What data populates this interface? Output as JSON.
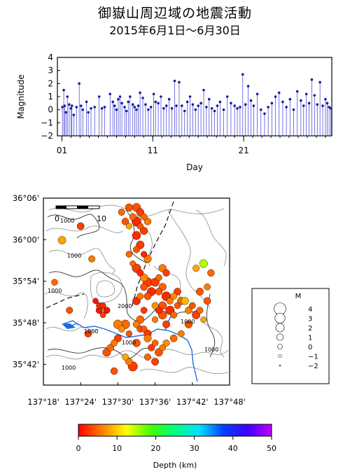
{
  "title": "御嶽山周辺域の地震活動",
  "subtitle": "2015年6月1日〜6月30日",
  "chart_data": [
    {
      "type": "line",
      "name": "magnitude-time",
      "ylabel": "Magnitude",
      "xlabel": "Day",
      "ylim": [
        -2,
        4
      ],
      "yticks": [
        "4",
        "3",
        "2",
        "1",
        "0",
        "−1",
        "−2"
      ],
      "xticks": [
        "01",
        "11",
        "21"
      ],
      "grid": false,
      "marker_color": "#1a1a9e",
      "stem_color": "#3a3ad8",
      "events": {
        "day": [
          1.05,
          1.2,
          1.3,
          1.45,
          1.6,
          1.8,
          2.0,
          2.1,
          2.3,
          2.6,
          2.9,
          3.1,
          3.3,
          3.7,
          3.9,
          4.2,
          4.6,
          5.1,
          5.4,
          5.7,
          6.3,
          6.6,
          6.8,
          7.0,
          7.2,
          7.4,
          7.6,
          7.9,
          8.1,
          8.3,
          8.5,
          8.8,
          9.0,
          9.2,
          9.4,
          9.6,
          9.9,
          10.2,
          10.5,
          10.8,
          11.1,
          11.3,
          11.6,
          11.9,
          12.2,
          12.5,
          12.8,
          13.1,
          13.4,
          13.6,
          13.9,
          14.2,
          14.5,
          14.8,
          15.1,
          15.4,
          15.7,
          16.0,
          16.3,
          16.6,
          16.9,
          17.2,
          17.5,
          17.8,
          18.1,
          18.4,
          18.8,
          19.2,
          19.6,
          20.0,
          20.3,
          20.6,
          20.9,
          21.2,
          21.5,
          21.8,
          22.1,
          22.5,
          22.9,
          23.3,
          23.7,
          24.1,
          24.5,
          24.9,
          25.3,
          25.7,
          26.1,
          26.5,
          26.9,
          27.3,
          27.6,
          27.9,
          28.2,
          28.5,
          28.8,
          29.1,
          29.4,
          29.7,
          30.0,
          30.2,
          30.4,
          30.6
        ],
        "mag": [
          0.2,
          1.5,
          0.3,
          -0.2,
          1.0,
          0.4,
          0.1,
          0.3,
          -0.4,
          0.2,
          2.0,
          0.3,
          0.0,
          0.6,
          -0.2,
          0.1,
          0.2,
          1.0,
          0.1,
          0.2,
          1.2,
          0.6,
          0.3,
          0.0,
          0.8,
          1.0,
          0.5,
          0.2,
          -0.1,
          0.6,
          1.0,
          0.4,
          0.2,
          0.0,
          0.3,
          1.3,
          0.9,
          0.4,
          0.0,
          0.2,
          1.2,
          0.6,
          0.5,
          1.0,
          0.1,
          0.3,
          0.8,
          0.1,
          2.2,
          0.3,
          2.1,
          0.3,
          -0.1,
          0.6,
          1.0,
          0.4,
          0.0,
          0.3,
          0.5,
          1.5,
          0.2,
          0.8,
          0.1,
          -0.1,
          0.3,
          0.6,
          0.0,
          1.0,
          0.5,
          0.3,
          0.1,
          0.2,
          2.7,
          0.4,
          1.8,
          0.7,
          0.3,
          1.2,
          0.0,
          -0.3,
          0.2,
          0.5,
          1.0,
          1.3,
          0.6,
          0.2,
          0.8,
          0.0,
          1.4,
          0.7,
          0.3,
          1.2,
          0.5,
          2.3,
          1.1,
          0.4,
          2.1,
          0.3,
          0.8,
          0.5,
          0.2,
          0.1
        ]
      }
    },
    {
      "type": "scatter",
      "name": "epicenter-map",
      "xticks": [
        "137°18'",
        "137°24'",
        "137°30'",
        "137°36'",
        "137°42'",
        "137°48'"
      ],
      "yticks": [
        "36°06'",
        "36°00'",
        "35°54'",
        "35°48'",
        "35°42'"
      ],
      "xlim_deg": [
        137.3,
        137.8
      ],
      "ylim_deg": [
        35.7,
        36.1
      ],
      "scale_label_0": "0",
      "scale_label_10": "10",
      "contour_labels": [
        "1000",
        "1000",
        "1000",
        "2000",
        "1000",
        "1000",
        "1000",
        "1000",
        "1000"
      ],
      "lake_color": "#1a6fe0",
      "fault_color": "#000000",
      "events": {
        "lon": [
          137.55,
          137.56,
          137.57,
          137.55,
          137.58,
          137.56,
          137.57,
          137.55,
          137.54,
          137.53,
          137.56,
          137.55,
          137.57,
          137.58,
          137.54,
          137.52,
          137.55,
          137.56,
          137.57,
          137.53,
          137.58,
          137.57,
          137.56,
          137.55,
          137.45,
          137.46,
          137.47,
          137.46,
          137.45,
          137.44,
          137.47,
          137.6,
          137.62,
          137.61,
          137.63,
          137.64,
          137.62,
          137.66,
          137.65,
          137.67,
          137.61,
          137.62,
          137.6,
          137.63,
          137.65,
          137.64,
          137.66,
          137.68,
          137.69,
          137.7,
          137.71,
          137.72,
          137.73,
          137.74,
          137.62,
          137.63,
          137.61,
          137.59,
          137.58,
          137.6,
          137.57,
          137.56,
          137.55,
          137.57,
          137.58,
          137.52,
          137.51,
          137.53,
          137.5,
          137.49,
          137.48,
          137.47,
          137.52,
          137.53,
          137.54,
          137.56,
          137.58,
          137.6,
          137.59,
          137.61,
          137.63,
          137.65,
          137.67,
          137.69,
          137.71,
          137.73,
          137.75,
          137.74,
          137.72,
          137.43,
          137.4,
          137.35,
          137.33,
          137.37,
          137.42,
          137.5,
          137.55,
          137.58,
          137.6,
          137.62,
          137.49,
          137.51,
          137.53
        ],
        "lat": [
          36.08,
          36.07,
          36.06,
          36.05,
          36.05,
          36.04,
          36.03,
          36.02,
          36.06,
          36.04,
          36.0,
          35.99,
          35.98,
          35.97,
          35.96,
          36.05,
          35.95,
          35.94,
          35.93,
          35.98,
          35.92,
          35.91,
          35.89,
          35.88,
          35.86,
          35.87,
          35.86,
          35.85,
          35.87,
          35.88,
          35.86,
          35.92,
          35.91,
          35.9,
          35.89,
          35.88,
          35.87,
          35.9,
          35.89,
          35.88,
          35.86,
          35.85,
          35.84,
          35.83,
          35.85,
          35.86,
          35.87,
          35.88,
          35.86,
          35.87,
          35.85,
          35.86,
          35.84,
          35.88,
          35.95,
          35.94,
          35.93,
          35.9,
          35.89,
          35.87,
          35.86,
          35.84,
          35.83,
          35.82,
          35.81,
          35.83,
          35.82,
          35.81,
          35.8,
          35.79,
          35.78,
          35.77,
          35.76,
          35.75,
          35.74,
          35.82,
          35.8,
          35.79,
          35.78,
          35.77,
          35.79,
          35.8,
          35.81,
          35.83,
          35.95,
          35.96,
          35.94,
          35.91,
          35.9,
          35.97,
          36.04,
          36.01,
          35.92,
          35.86,
          35.81,
          35.83,
          35.79,
          35.76,
          35.75,
          35.78,
          35.73,
          36.07,
          36.08
        ],
        "mag": [
          2.0,
          1.5,
          1.0,
          2.5,
          1.2,
          0.8,
          1.5,
          2.0,
          1.0,
          0.6,
          1.8,
          1.0,
          0.7,
          1.5,
          0.5,
          1.2,
          2.2,
          1.0,
          1.6,
          0.8,
          2.5,
          1.3,
          0.9,
          1.7,
          1.0,
          0.6,
          0.8,
          0.5,
          0.7,
          0.4,
          0.9,
          2.0,
          1.5,
          1.2,
          2.4,
          1.0,
          1.8,
          1.3,
          0.9,
          1.6,
          1.1,
          2.0,
          0.7,
          1.4,
          1.0,
          2.2,
          0.8,
          1.5,
          1.2,
          0.9,
          1.8,
          1.0,
          0.6,
          1.3,
          1.6,
          1.1,
          0.8,
          2.0,
          1.3,
          1.0,
          0.9,
          1.7,
          1.2,
          0.8,
          1.5,
          2.3,
          1.0,
          0.7,
          1.4,
          1.0,
          1.2,
          1.8,
          0.9,
          1.3,
          2.6,
          1.0,
          1.5,
          0.8,
          1.1,
          1.7,
          1.0,
          1.3,
          0.9,
          1.5,
          1.0,
          1.8,
          1.2,
          0.9,
          1.4,
          1.0,
          1.3,
          1.7,
          0.8,
          1.0,
          1.2,
          2.3,
          1.6,
          1.0,
          1.4,
          0.8,
          1.2,
          1.0,
          1.5
        ],
        "depth": [
          4,
          3,
          5,
          2,
          6,
          4,
          3,
          2,
          5,
          8,
          3,
          4,
          2,
          6,
          5,
          4,
          3,
          2,
          7,
          5,
          3,
          4,
          6,
          2,
          1,
          2,
          1,
          3,
          2,
          1,
          2,
          3,
          5,
          4,
          2,
          6,
          4,
          3,
          7,
          5,
          2,
          4,
          6,
          3,
          5,
          2,
          4,
          9,
          6,
          4,
          3,
          5,
          8,
          4,
          6,
          3,
          5,
          2,
          4,
          7,
          3,
          5,
          6,
          4,
          3,
          5,
          7,
          4,
          3,
          6,
          5,
          4,
          8,
          6,
          3,
          4,
          6,
          5,
          3,
          4,
          7,
          5,
          6,
          4,
          8,
          15,
          5,
          6,
          4,
          6,
          3,
          8,
          5,
          4,
          3,
          6,
          4,
          5,
          3,
          6,
          4,
          5,
          4
        ]
      }
    },
    {
      "type": "legend",
      "name": "magnitude-legend",
      "title": "M",
      "labels": [
        "4",
        "3",
        "2",
        "1",
        "0",
        "−1",
        "−2"
      ],
      "values": [
        4,
        3,
        2,
        1,
        0,
        -1,
        -2
      ]
    },
    {
      "type": "colorbar",
      "name": "depth-colorbar",
      "label": "Depth (km)",
      "range": [
        0,
        50
      ],
      "ticks": [
        "0",
        "10",
        "20",
        "30",
        "40",
        "50"
      ],
      "colors": [
        "#ff0000",
        "#ff8000",
        "#ffff00",
        "#40ff00",
        "#00ff80",
        "#00e0ff",
        "#0040ff",
        "#4000ff",
        "#c000ff"
      ]
    }
  ]
}
